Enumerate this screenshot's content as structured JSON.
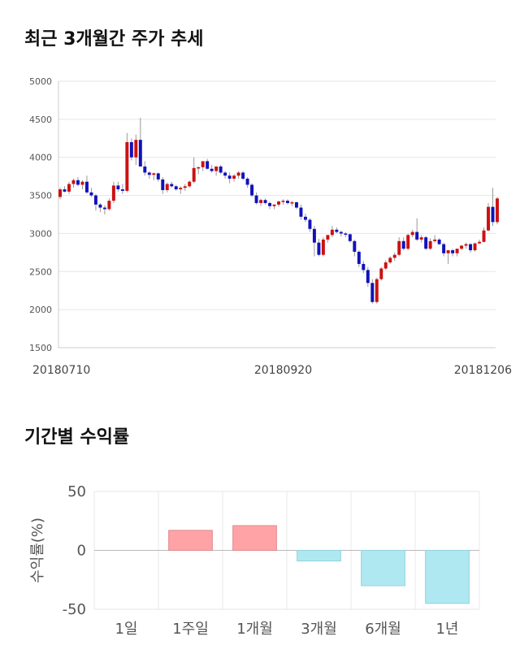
{
  "titles": {
    "price_chart": "최근 3개월간 주가 추세",
    "return_chart": "기간별 수익률"
  },
  "colors": {
    "up": "#cc1111",
    "down": "#1111bb",
    "positive_bar": "#ffa3a6",
    "negative_bar": "#b0e8f2"
  },
  "chart_data": [
    {
      "type": "candlestick",
      "title": "최근 3개월간 주가 추세",
      "ylim": [
        1500,
        5000
      ],
      "yticks": [
        5000,
        4500,
        4000,
        3500,
        3000,
        2500,
        2000,
        1500
      ],
      "x_labels": [
        "20180710",
        "20180920",
        "20181206"
      ],
      "x_label_index": [
        0,
        50,
        95
      ],
      "grid": true,
      "candles": [
        [
          3480,
          3600,
          3450,
          3580
        ],
        [
          3580,
          3620,
          3540,
          3550
        ],
        [
          3550,
          3680,
          3520,
          3650
        ],
        [
          3650,
          3720,
          3600,
          3700
        ],
        [
          3700,
          3740,
          3620,
          3640
        ],
        [
          3640,
          3700,
          3580,
          3680
        ],
        [
          3680,
          3760,
          3520,
          3540
        ],
        [
          3540,
          3600,
          3480,
          3500
        ],
        [
          3500,
          3520,
          3300,
          3380
        ],
        [
          3380,
          3400,
          3280,
          3340
        ],
        [
          3340,
          3370,
          3250,
          3320
        ],
        [
          3320,
          3460,
          3300,
          3430
        ],
        [
          3430,
          3680,
          3400,
          3630
        ],
        [
          3630,
          3680,
          3550,
          3580
        ],
        [
          3580,
          3650,
          3520,
          3560
        ],
        [
          3560,
          4320,
          3540,
          4200
        ],
        [
          4200,
          4250,
          3960,
          4000
        ],
        [
          4000,
          4300,
          3900,
          4230
        ],
        [
          4230,
          4520,
          3900,
          3880
        ],
        [
          3880,
          3950,
          3760,
          3800
        ],
        [
          3800,
          3820,
          3720,
          3770
        ],
        [
          3770,
          3800,
          3700,
          3790
        ],
        [
          3790,
          3800,
          3680,
          3710
        ],
        [
          3710,
          3740,
          3520,
          3570
        ],
        [
          3570,
          3670,
          3540,
          3650
        ],
        [
          3650,
          3680,
          3600,
          3620
        ],
        [
          3620,
          3640,
          3560,
          3580
        ],
        [
          3580,
          3620,
          3520,
          3600
        ],
        [
          3600,
          3650,
          3560,
          3620
        ],
        [
          3620,
          3700,
          3600,
          3680
        ],
        [
          3680,
          4000,
          3660,
          3860
        ],
        [
          3860,
          3880,
          3780,
          3870
        ],
        [
          3870,
          3920,
          3820,
          3950
        ],
        [
          3950,
          3980,
          3840,
          3850
        ],
        [
          3850,
          3900,
          3800,
          3820
        ],
        [
          3820,
          3850,
          3760,
          3880
        ],
        [
          3880,
          3900,
          3780,
          3800
        ],
        [
          3800,
          3820,
          3720,
          3760
        ],
        [
          3760,
          3800,
          3660,
          3720
        ],
        [
          3720,
          3780,
          3680,
          3760
        ],
        [
          3760,
          3820,
          3720,
          3800
        ],
        [
          3800,
          3820,
          3700,
          3720
        ],
        [
          3720,
          3740,
          3600,
          3640
        ],
        [
          3640,
          3660,
          3480,
          3500
        ],
        [
          3500,
          3540,
          3380,
          3400
        ],
        [
          3400,
          3460,
          3360,
          3440
        ],
        [
          3440,
          3460,
          3380,
          3400
        ],
        [
          3400,
          3420,
          3320,
          3360
        ],
        [
          3360,
          3380,
          3320,
          3380
        ],
        [
          3380,
          3430,
          3350,
          3420
        ],
        [
          3420,
          3450,
          3380,
          3430
        ],
        [
          3430,
          3450,
          3380,
          3400
        ],
        [
          3400,
          3430,
          3360,
          3410
        ],
        [
          3410,
          3420,
          3320,
          3340
        ],
        [
          3340,
          3380,
          3180,
          3220
        ],
        [
          3220,
          3260,
          3150,
          3180
        ],
        [
          3180,
          3200,
          3020,
          3060
        ],
        [
          3060,
          3100,
          2700,
          2880
        ],
        [
          2880,
          2930,
          2700,
          2720
        ],
        [
          2720,
          2950,
          2700,
          2920
        ],
        [
          2920,
          2980,
          2880,
          2980
        ],
        [
          2980,
          3100,
          2950,
          3050
        ],
        [
          3050,
          3080,
          3000,
          3020
        ],
        [
          3020,
          3040,
          2960,
          3000
        ],
        [
          3000,
          3020,
          2950,
          2990
        ],
        [
          2990,
          3000,
          2880,
          2900
        ],
        [
          2900,
          2920,
          2700,
          2760
        ],
        [
          2760,
          2780,
          2560,
          2600
        ],
        [
          2600,
          2640,
          2480,
          2520
        ],
        [
          2520,
          2560,
          2300,
          2350
        ],
        [
          2350,
          2400,
          2080,
          2100
        ],
        [
          2100,
          2420,
          2080,
          2400
        ],
        [
          2400,
          2560,
          2380,
          2540
        ],
        [
          2540,
          2650,
          2520,
          2620
        ],
        [
          2620,
          2700,
          2600,
          2680
        ],
        [
          2680,
          2750,
          2640,
          2720
        ],
        [
          2720,
          2950,
          2700,
          2900
        ],
        [
          2900,
          2950,
          2780,
          2800
        ],
        [
          2800,
          3000,
          2780,
          2980
        ],
        [
          2980,
          3050,
          2950,
          3020
        ],
        [
          3020,
          3200,
          2900,
          2920
        ],
        [
          2920,
          2980,
          2880,
          2950
        ],
        [
          2950,
          2970,
          2780,
          2800
        ],
        [
          2800,
          2940,
          2780,
          2900
        ],
        [
          2900,
          2980,
          2880,
          2920
        ],
        [
          2920,
          2940,
          2850,
          2860
        ],
        [
          2860,
          2880,
          2700,
          2740
        ],
        [
          2740,
          2760,
          2600,
          2780
        ],
        [
          2780,
          2800,
          2700,
          2740
        ],
        [
          2740,
          2800,
          2700,
          2800
        ],
        [
          2800,
          2850,
          2780,
          2840
        ],
        [
          2840,
          2880,
          2800,
          2860
        ],
        [
          2860,
          2870,
          2750,
          2780
        ],
        [
          2780,
          2880,
          2760,
          2870
        ],
        [
          2870,
          2920,
          2860,
          2890
        ],
        [
          2890,
          3080,
          2880,
          3040
        ],
        [
          3040,
          3400,
          3030,
          3350
        ],
        [
          3350,
          3600,
          3100,
          3150
        ],
        [
          3150,
          3480,
          3120,
          3460
        ]
      ]
    },
    {
      "type": "bar",
      "title": "기간별 수익률",
      "ylabel": "수익률(%)",
      "categories": [
        "1일",
        "1주일",
        "1개월",
        "3개월",
        "6개월",
        "1년"
      ],
      "values": [
        0,
        17,
        21,
        -9,
        -30,
        -45
      ],
      "ylim": [
        -50,
        50
      ],
      "yticks": [
        50,
        0,
        -50
      ],
      "grid": true
    }
  ]
}
